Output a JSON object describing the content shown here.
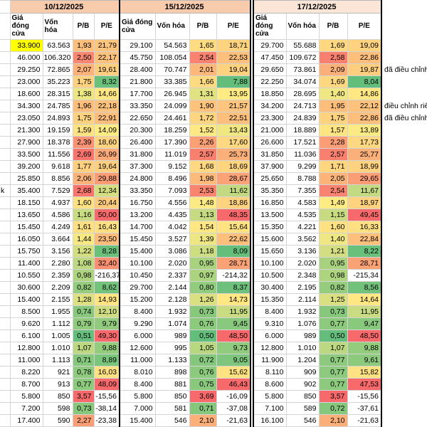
{
  "sheet": {
    "columns": [
      "Giá đóng cửa",
      "Vốn hóa",
      "P/B",
      "P/E"
    ],
    "sections": [
      {
        "date": "10/12/2025"
      },
      {
        "date": "15/12/2025"
      },
      {
        "date": "17/12/2025"
      }
    ],
    "colors": {
      "scale_low": "#63BE7B",
      "scale_mid": "#FFEB84",
      "scale_high": "#F8696B",
      "negative_pe_bg": "#FFFFFF",
      "highlight_cell": "#FFFF00",
      "date_header_bg_1": "#F8CBAD",
      "date_header_bg_2": "#F8CBAD",
      "date_header_bg_3": "#FBE5D6",
      "grid_line": "#d4d4d4",
      "section_divider": "#000000"
    },
    "highlight": {
      "row": 0,
      "section": 0,
      "col": 0
    },
    "rows": [
      {
        "label": "",
        "cells": [
          [
            "33.900",
            "63.563",
            "1,93",
            "21,79"
          ],
          [
            "29.100",
            "54.563",
            "1,65",
            "18,71"
          ],
          [
            "29.700",
            "55.688",
            "1,69",
            "19,09"
          ]
        ],
        "note": ""
      },
      {
        "label": "",
        "cells": [
          [
            "46.000",
            "106.320",
            "2,50",
            "22,17"
          ],
          [
            "45.750",
            "108.054",
            "2,54",
            "22,53"
          ],
          [
            "47.450",
            "109.672",
            "2,58",
            "22,86"
          ]
        ],
        "note": ""
      },
      {
        "label": "",
        "cells": [
          [
            "29.250",
            "72.865",
            "2,07",
            "19,61"
          ],
          [
            "28.400",
            "70.747",
            "2,01",
            "19,04"
          ],
          [
            "29.650",
            "73.861",
            "2,09",
            "19,87"
          ]
        ],
        "note": "đã điều chỉnh"
      },
      {
        "label": "",
        "cells": [
          [
            "23.000",
            "35.223",
            "1,75",
            "8,32"
          ],
          [
            "21.800",
            "33.385",
            "1,66",
            "7,88"
          ],
          [
            "22.250",
            "34.074",
            "1,69",
            "8,04"
          ]
        ],
        "note": ""
      },
      {
        "label": "",
        "cells": [
          [
            "18.600",
            "28.315",
            "1,38",
            "14,66"
          ],
          [
            "17.700",
            "26.945",
            "1,31",
            "13,95"
          ],
          [
            "18.850",
            "28.695",
            "1,40",
            "14,86"
          ]
        ],
        "note": ""
      },
      {
        "label": "",
        "cells": [
          [
            "34.300",
            "24.785",
            "1,96",
            "22,18"
          ],
          [
            "33.350",
            "24.099",
            "1,90",
            "21,57"
          ],
          [
            "34.200",
            "24.713",
            "1,95",
            "22,12"
          ]
        ],
        "note": "điều chỉnh riê"
      },
      {
        "label": "",
        "cells": [
          [
            "23.050",
            "24.893",
            "1,75",
            "22,91"
          ],
          [
            "22.650",
            "24.461",
            "1,72",
            "22,51"
          ],
          [
            "23.300",
            "24.839",
            "1,75",
            "22,86"
          ]
        ],
        "note": "đã điều chỉnh"
      },
      {
        "label": "",
        "cells": [
          [
            "21.300",
            "19.159",
            "1,59",
            "14,09"
          ],
          [
            "20.300",
            "18.259",
            "1,52",
            "13,43"
          ],
          [
            "21.000",
            "18.889",
            "1,57",
            "13,89"
          ]
        ],
        "note": ""
      },
      {
        "label": "",
        "cells": [
          [
            "27.900",
            "18.378",
            "2,39",
            "18,60"
          ],
          [
            "26.400",
            "17.390",
            "2,26",
            "17,60"
          ],
          [
            "26.600",
            "17.521",
            "2,28",
            "17,73"
          ]
        ],
        "note": ""
      },
      {
        "label": "",
        "cells": [
          [
            "33.500",
            "11.556",
            "2,69",
            "26,99"
          ],
          [
            "31.800",
            "11.019",
            "2,57",
            "25,73"
          ],
          [
            "31.850",
            "11.036",
            "2,57",
            "25,77"
          ]
        ],
        "note": ""
      },
      {
        "label": "",
        "cells": [
          [
            "39.200",
            "9.618",
            "1,77",
            "19,64"
          ],
          [
            "37.300",
            "9.152",
            "1,68",
            "18,69"
          ],
          [
            "37.900",
            "9.299",
            "1,71",
            "18,99"
          ]
        ],
        "note": ""
      },
      {
        "label": "",
        "cells": [
          [
            "25.850",
            "8.856",
            "2,06",
            "29,88"
          ],
          [
            "24.800",
            "8.496",
            "1,98",
            "28,67"
          ],
          [
            "25.650",
            "8.788",
            "2,05",
            "29,65"
          ]
        ],
        "note": ""
      },
      {
        "label": "k",
        "cells": [
          [
            "35.400",
            "7.529",
            "2,68",
            "12,34"
          ],
          [
            "33.350",
            "7.093",
            "2,53",
            "11,62"
          ],
          [
            "35.350",
            "7.355",
            "2,54",
            "11,67"
          ]
        ],
        "note": ""
      },
      {
        "label": "",
        "cells": [
          [
            "18.150",
            "4.937",
            "1,60",
            "20,44"
          ],
          [
            "16.750",
            "4.556",
            "1,48",
            "18,86"
          ],
          [
            "16.850",
            "4.583",
            "1,49",
            "18,97"
          ]
        ],
        "note": ""
      },
      {
        "label": "",
        "cells": [
          [
            "13.650",
            "4.586",
            "1,16",
            "50,00"
          ],
          [
            "13.200",
            "4.435",
            "1,13",
            "48,35"
          ],
          [
            "13.500",
            "4.535",
            "1,15",
            "49,45"
          ]
        ],
        "note": ""
      },
      {
        "label": "",
        "cells": [
          [
            "15.450",
            "4.249",
            "1,61",
            "16,43"
          ],
          [
            "14.700",
            "4.042",
            "1,54",
            "15,64"
          ],
          [
            "15.350",
            "4.221",
            "1,60",
            "16,33"
          ]
        ],
        "note": ""
      },
      {
        "label": "",
        "cells": [
          [
            "16.050",
            "3.664",
            "1,44",
            "23,50"
          ],
          [
            "15.450",
            "3.527",
            "1,39",
            "22,62"
          ],
          [
            "15.600",
            "3.562",
            "1,40",
            "22,84"
          ]
        ],
        "note": ""
      },
      {
        "label": "",
        "cells": [
          [
            "15.750",
            "3.156",
            "1,22",
            "8,28"
          ],
          [
            "15.400",
            "3.086",
            "1,18",
            "8,09"
          ],
          [
            "15.650",
            "3.136",
            "1,21",
            "8,22"
          ]
        ],
        "note": ""
      },
      {
        "label": "",
        "cells": [
          [
            "11.400",
            "2.280",
            "1,08",
            "32,40"
          ],
          [
            "10.100",
            "2.020",
            "0,95",
            "28,71"
          ],
          [
            "10.100",
            "2.020",
            "0,95",
            "28,71"
          ]
        ],
        "note": ""
      },
      {
        "label": "",
        "cells": [
          [
            "10.550",
            "2.359",
            "0,98",
            "-216,37"
          ],
          [
            "10.450",
            "2.337",
            "0,97",
            "-214,32"
          ],
          [
            "10.500",
            "2.348",
            "0,98",
            "-215,34"
          ]
        ],
        "note": ""
      },
      {
        "label": "",
        "cells": [
          [
            "30.600",
            "2.209",
            "0,82",
            "8,62"
          ],
          [
            "29.700",
            "2.144",
            "0,80",
            "8,37"
          ],
          [
            "30.400",
            "2.195",
            "0,82",
            "8,56"
          ]
        ],
        "note": ""
      },
      {
        "label": "",
        "cells": [
          [
            "15.400",
            "2.155",
            "1,28",
            "14,93"
          ],
          [
            "15.200",
            "2.128",
            "1,26",
            "14,73"
          ],
          [
            "15.350",
            "2.114",
            "1,25",
            "14,64"
          ]
        ],
        "note": ""
      },
      {
        "label": "",
        "cells": [
          [
            "8.500",
            "1.955",
            "0,74",
            "12,10"
          ],
          [
            "8.400",
            "1.932",
            "0,73",
            "11,95"
          ],
          [
            "8.400",
            "1.932",
            "0,73",
            "11,95"
          ]
        ],
        "note": ""
      },
      {
        "label": "",
        "cells": [
          [
            "9.620",
            "1.112",
            "0,79",
            "9,79"
          ],
          [
            "9.290",
            "1.074",
            "0,76",
            "9,45"
          ],
          [
            "9.310",
            "1.076",
            "0,77",
            "9,47"
          ]
        ],
        "note": ""
      },
      {
        "label": "",
        "cells": [
          [
            "6.100",
            "1.005",
            "0,51",
            "49,30"
          ],
          [
            "6.000",
            "989",
            "0,50",
            "48,50"
          ],
          [
            "6.000",
            "989",
            "0,50",
            "48,50"
          ]
        ],
        "note": ""
      },
      {
        "label": "",
        "cells": [
          [
            "12.800",
            "1.010",
            "1,07",
            "9,88"
          ],
          [
            "12.600",
            "995",
            "1,05",
            "9,73"
          ],
          [
            "12.800",
            "1.010",
            "1,07",
            "9,88"
          ]
        ],
        "note": ""
      },
      {
        "label": "",
        "cells": [
          [
            "11.000",
            "1.113",
            "0,71",
            "8,89"
          ],
          [
            "11.000",
            "1.133",
            "0,72",
            "9,05"
          ],
          [
            "11.900",
            "1.204",
            "0,77",
            "9,61"
          ]
        ],
        "note": ""
      },
      {
        "label": "",
        "cells": [
          [
            "8.220",
            "921",
            "0,78",
            "16,03"
          ],
          [
            "8.010",
            "898",
            "0,76",
            "15,62"
          ],
          [
            "8.110",
            "909",
            "0,77",
            "15,82"
          ]
        ],
        "note": ""
      },
      {
        "label": "",
        "cells": [
          [
            "8.700",
            "913",
            "0,77",
            "48,09"
          ],
          [
            "8.400",
            "881",
            "0,75",
            "46,43"
          ],
          [
            "8.600",
            "902",
            "0,77",
            "47,53"
          ]
        ],
        "note": ""
      },
      {
        "label": "",
        "cells": [
          [
            "5.800",
            "850",
            "3,57",
            "-15,56"
          ],
          [
            "5.800",
            "850",
            "3,69",
            "-16,09"
          ],
          [
            "5.800",
            "850",
            "3,57",
            "-15,56"
          ]
        ],
        "note": ""
      },
      {
        "label": "",
        "cells": [
          [
            "7.200",
            "598",
            "0,73",
            "-38,14"
          ],
          [
            "7.000",
            "581",
            "0,71",
            "-37,08"
          ],
          [
            "7.100",
            "589",
            "0,72",
            "-37,61"
          ]
        ],
        "note": ""
      },
      {
        "label": "",
        "cells": [
          [
            "17.400",
            "590",
            "2,27",
            "-23,38"
          ],
          [
            "15.400",
            "546",
            "2,10",
            "-21,63"
          ],
          [
            "16.100",
            "546",
            "2,10",
            "-21,63"
          ]
        ],
        "note": ""
      }
    ]
  }
}
